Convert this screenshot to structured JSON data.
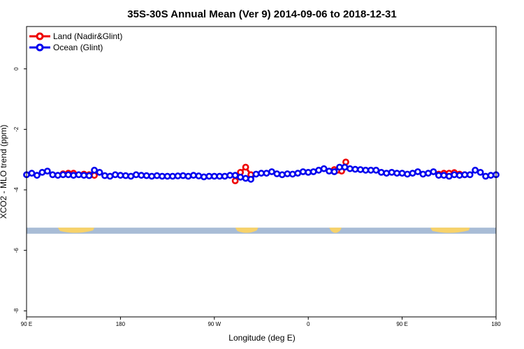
{
  "chart_data": {
    "type": "line",
    "title": "35S-30S Annual Mean (Ver 9)   2014-09-06 to 2018-12-31",
    "xlabel": "Longitude (deg E)",
    "ylabel": "XCO2 - MLO trend (ppm)",
    "x_ticks": [
      {
        "pos": 0,
        "label": "90 E"
      },
      {
        "pos": 90,
        "label": "180"
      },
      {
        "pos": 180,
        "label": "90 W"
      },
      {
        "pos": 270,
        "label": "0"
      },
      {
        "pos": 360,
        "label": "90 E"
      },
      {
        "pos": 450,
        "label": "180"
      }
    ],
    "y_ticks": [
      0,
      -2,
      -4,
      -6,
      -8
    ],
    "xlim": [
      0,
      450
    ],
    "ylim": [
      -8.2,
      1.4
    ],
    "legend_position": "top-left",
    "grid": false,
    "map_strip": {
      "ocean_color": "#a8bcd6",
      "land_color": "#f7d26a",
      "y_range": [
        -5.45,
        -5.25
      ],
      "land_segments": [
        [
          30,
          65
        ],
        [
          200,
          222
        ],
        [
          290,
          302
        ],
        [
          387,
          425
        ]
      ]
    },
    "series": [
      {
        "name": "Land (Nadir&Glint)",
        "color": "#ee0000",
        "x": [
          35,
          40,
          45,
          55,
          60,
          65,
          200,
          205,
          210,
          215,
          295,
          298,
          302,
          306,
          395,
          400,
          405,
          410,
          415,
          420
        ],
        "y": [
          -3.47,
          -3.45,
          -3.45,
          -3.48,
          -3.5,
          -3.52,
          -3.7,
          -3.42,
          -3.25,
          -3.5,
          -3.33,
          -3.35,
          -3.38,
          -3.08,
          -3.48,
          -3.45,
          -3.45,
          -3.43,
          -3.48,
          -3.5
        ]
      },
      {
        "name": "Ocean (Glint)",
        "color": "#0000ee",
        "x": [
          0,
          5,
          10,
          15,
          20,
          25,
          30,
          35,
          40,
          45,
          50,
          55,
          60,
          65,
          70,
          75,
          80,
          85,
          90,
          95,
          100,
          105,
          110,
          115,
          120,
          125,
          130,
          135,
          140,
          145,
          150,
          155,
          160,
          165,
          170,
          175,
          180,
          185,
          190,
          195,
          200,
          205,
          210,
          215,
          220,
          225,
          230,
          235,
          240,
          245,
          250,
          255,
          260,
          265,
          270,
          275,
          280,
          285,
          290,
          295,
          300,
          305,
          310,
          315,
          320,
          325,
          330,
          335,
          340,
          345,
          350,
          355,
          360,
          365,
          370,
          375,
          380,
          385,
          390,
          395,
          400,
          405,
          410,
          415,
          420,
          425,
          430,
          435,
          440,
          445,
          450
        ],
        "y": [
          -3.5,
          -3.45,
          -3.52,
          -3.42,
          -3.38,
          -3.5,
          -3.52,
          -3.5,
          -3.5,
          -3.52,
          -3.5,
          -3.52,
          -3.53,
          -3.35,
          -3.42,
          -3.53,
          -3.55,
          -3.5,
          -3.52,
          -3.53,
          -3.55,
          -3.5,
          -3.52,
          -3.53,
          -3.55,
          -3.53,
          -3.55,
          -3.55,
          -3.55,
          -3.54,
          -3.53,
          -3.55,
          -3.52,
          -3.54,
          -3.57,
          -3.55,
          -3.55,
          -3.55,
          -3.55,
          -3.52,
          -3.52,
          -3.58,
          -3.62,
          -3.65,
          -3.48,
          -3.45,
          -3.45,
          -3.4,
          -3.47,
          -3.5,
          -3.47,
          -3.48,
          -3.45,
          -3.4,
          -3.42,
          -3.4,
          -3.35,
          -3.3,
          -3.38,
          -3.4,
          -3.25,
          -3.25,
          -3.3,
          -3.32,
          -3.33,
          -3.35,
          -3.35,
          -3.35,
          -3.42,
          -3.45,
          -3.42,
          -3.45,
          -3.45,
          -3.48,
          -3.45,
          -3.4,
          -3.48,
          -3.45,
          -3.4,
          -3.52,
          -3.52,
          -3.55,
          -3.5,
          -3.52,
          -3.5,
          -3.5,
          -3.35,
          -3.42,
          -3.55,
          -3.52,
          -3.5
        ]
      }
    ]
  }
}
